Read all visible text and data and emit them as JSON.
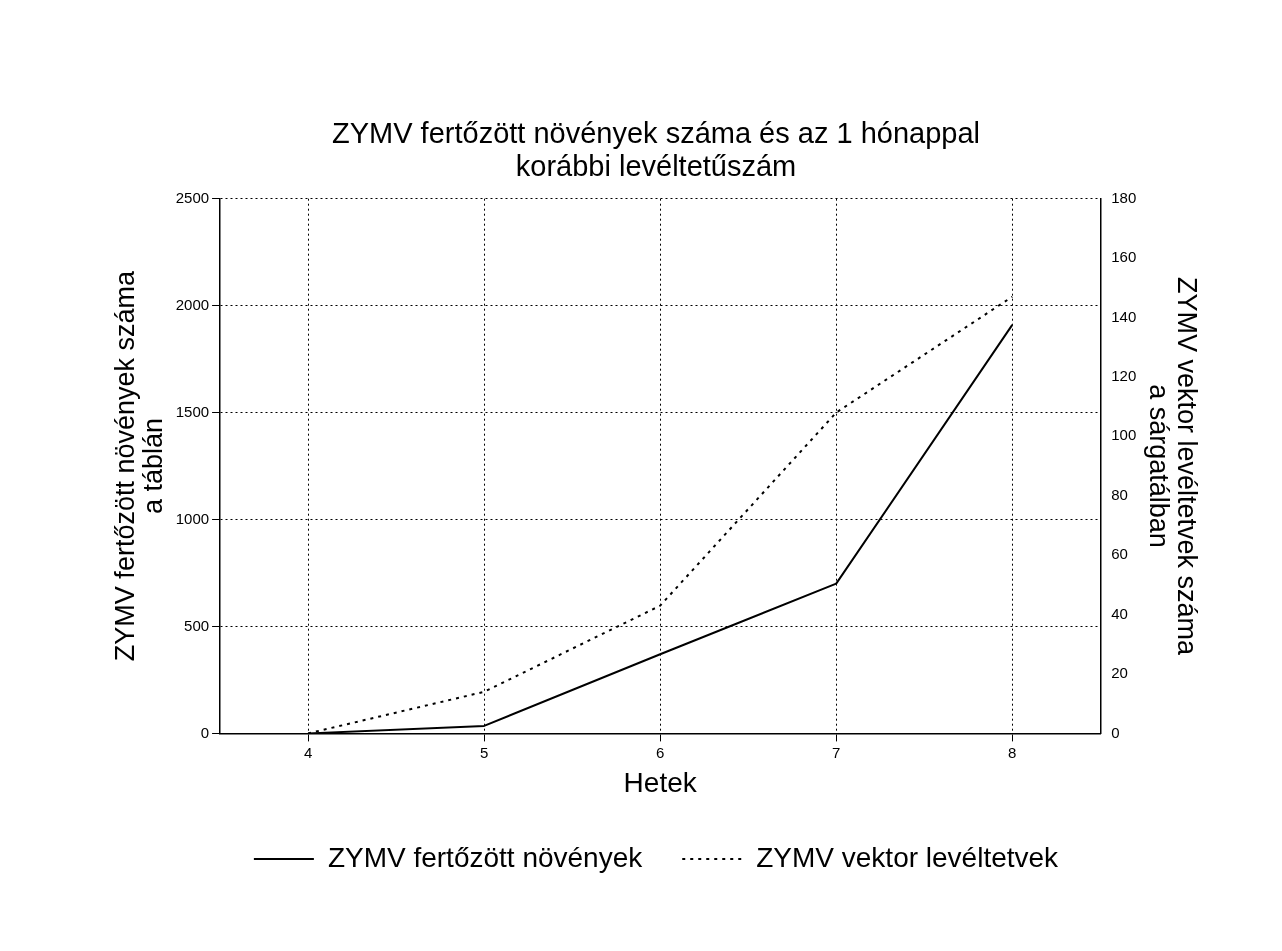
{
  "chart_data": {
    "type": "line",
    "title": [
      "ZYMV fertőzött növények száma és az 1 hónappal",
      "korábbi levéltetűszám"
    ],
    "xlabel": "Hetek",
    "ylabel": [
      "ZYMV fertőzött növények száma",
      "a táblán"
    ],
    "y2label": [
      "ZYMV vektor levéltetvek száma",
      "a sárgatálban"
    ],
    "x": [
      4,
      5,
      6,
      7,
      8
    ],
    "xlim": [
      3.5,
      8.5
    ],
    "xticks": [
      4,
      5,
      6,
      7,
      8
    ],
    "ylim": [
      0,
      2500
    ],
    "yticks": [
      0,
      500,
      1000,
      1500,
      2000,
      2500
    ],
    "y2lim": [
      0,
      180
    ],
    "y2ticks": [
      0,
      20,
      40,
      60,
      80,
      100,
      120,
      140,
      160,
      180
    ],
    "series": [
      {
        "name": "ZYMV fertőzött növények",
        "color": "#000000",
        "line_style": "solid",
        "values": [
          0,
          35,
          370,
          700,
          1910
        ]
      },
      {
        "name": "ZYMV vektor levéltetvek",
        "color": "#000000",
        "line_style": "dotted",
        "axis": "y2",
        "values": [
          0,
          14,
          43,
          108,
          147
        ]
      }
    ],
    "grid": true,
    "legend": "bottom",
    "marker": "none"
  }
}
